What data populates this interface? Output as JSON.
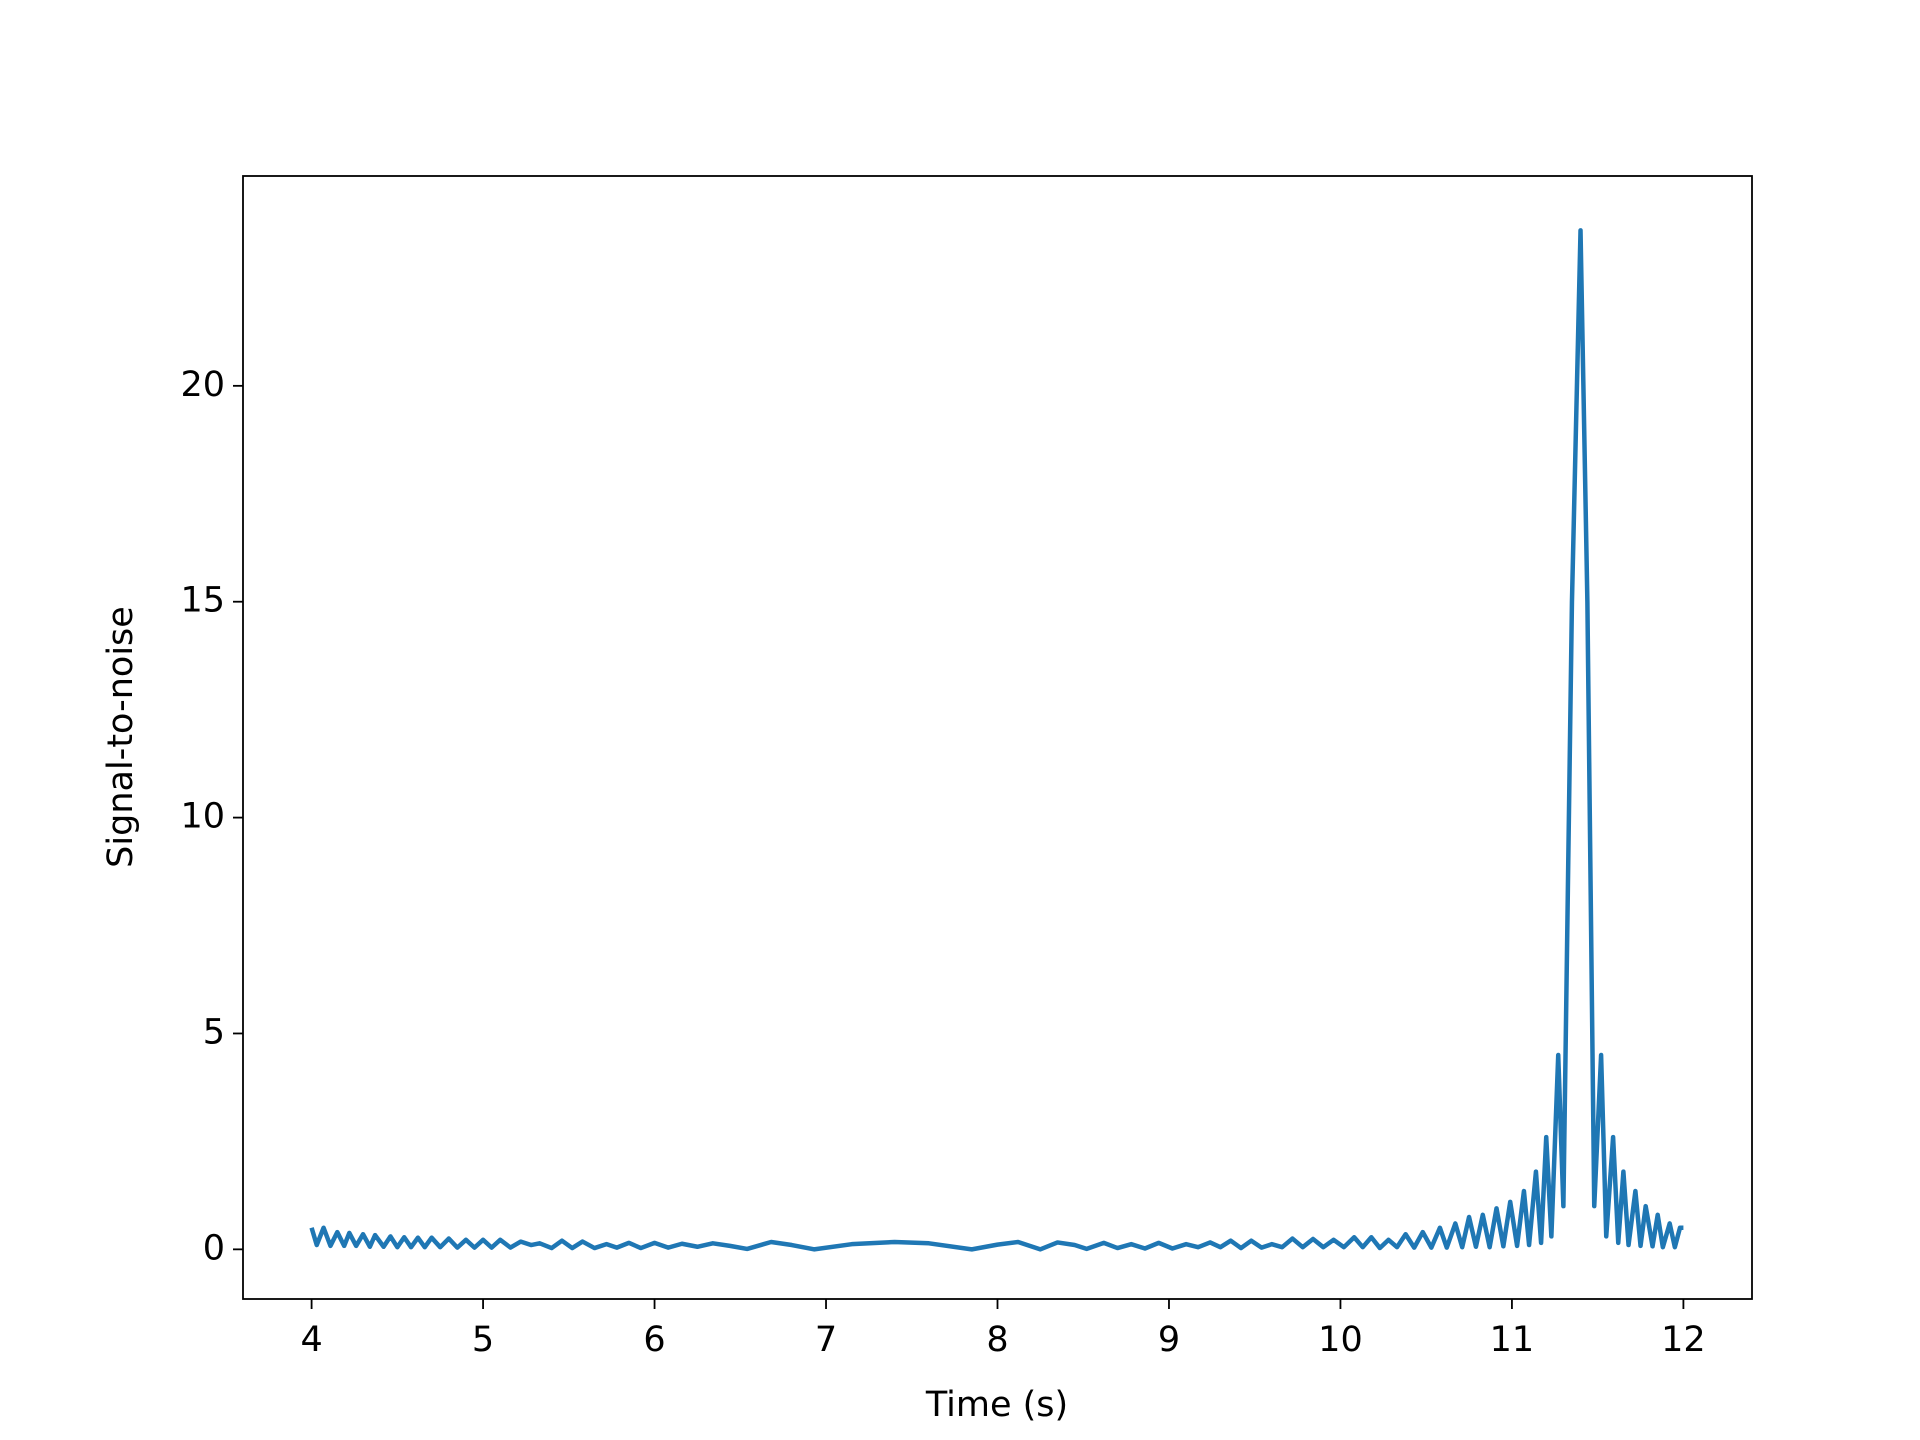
{
  "chart_data": {
    "type": "line",
    "xlabel": "Time (s)",
    "ylabel": "Signal-to-noise",
    "xlim": [
      3.6,
      12.4
    ],
    "xticks": [
      4,
      5,
      6,
      7,
      8,
      9,
      10,
      11,
      12
    ],
    "ylim": [
      -1.15,
      24.86
    ],
    "yticks": [
      0,
      5,
      10,
      15,
      20
    ],
    "grid": false,
    "x": [
      4.0,
      4.03,
      4.07,
      4.11,
      4.15,
      4.19,
      4.22,
      4.26,
      4.3,
      4.34,
      4.37,
      4.42,
      4.46,
      4.5,
      4.54,
      4.58,
      4.62,
      4.66,
      4.7,
      4.75,
      4.8,
      4.85,
      4.9,
      4.95,
      5.0,
      5.05,
      5.1,
      5.16,
      5.22,
      5.28,
      5.33,
      5.4,
      5.46,
      5.52,
      5.58,
      5.65,
      5.72,
      5.78,
      5.85,
      5.92,
      6.0,
      6.08,
      6.16,
      6.25,
      6.34,
      6.44,
      6.54,
      6.68,
      6.8,
      6.93,
      7.15,
      7.4,
      7.6,
      7.85,
      8.0,
      8.12,
      8.25,
      8.35,
      8.45,
      8.52,
      8.62,
      8.7,
      8.78,
      8.86,
      8.94,
      9.02,
      9.1,
      9.17,
      9.24,
      9.3,
      9.36,
      9.42,
      9.48,
      9.54,
      9.6,
      9.66,
      9.72,
      9.78,
      9.84,
      9.9,
      9.96,
      10.02,
      10.08,
      10.13,
      10.18,
      10.23,
      10.28,
      10.33,
      10.38,
      10.43,
      10.48,
      10.53,
      10.58,
      10.62,
      10.67,
      10.71,
      10.75,
      10.79,
      10.83,
      10.87,
      10.91,
      10.95,
      10.99,
      11.03,
      11.07,
      11.1,
      11.14,
      11.17,
      11.2,
      11.23,
      11.27,
      11.3,
      11.35,
      11.4,
      11.44,
      11.48,
      11.52,
      11.55,
      11.59,
      11.62,
      11.65,
      11.68,
      11.72,
      11.75,
      11.78,
      11.82,
      11.85,
      11.88,
      11.92,
      11.95,
      11.98,
      12.0
    ],
    "series": [
      {
        "color": "#1f77b4",
        "values": [
          0.5,
          0.1,
          0.5,
          0.08,
          0.4,
          0.08,
          0.38,
          0.08,
          0.35,
          0.06,
          0.33,
          0.06,
          0.3,
          0.05,
          0.28,
          0.05,
          0.27,
          0.05,
          0.27,
          0.05,
          0.25,
          0.04,
          0.22,
          0.04,
          0.22,
          0.04,
          0.22,
          0.04,
          0.18,
          0.1,
          0.14,
          0.03,
          0.2,
          0.03,
          0.18,
          0.03,
          0.12,
          0.04,
          0.15,
          0.03,
          0.15,
          0.04,
          0.13,
          0.06,
          0.14,
          0.08,
          0.01,
          0.17,
          0.1,
          0.0,
          0.12,
          0.17,
          0.14,
          0.0,
          0.11,
          0.17,
          0.0,
          0.16,
          0.1,
          0.01,
          0.15,
          0.03,
          0.12,
          0.02,
          0.15,
          0.02,
          0.12,
          0.05,
          0.16,
          0.05,
          0.2,
          0.03,
          0.2,
          0.04,
          0.12,
          0.05,
          0.25,
          0.05,
          0.24,
          0.05,
          0.22,
          0.05,
          0.28,
          0.05,
          0.28,
          0.03,
          0.22,
          0.05,
          0.35,
          0.04,
          0.4,
          0.04,
          0.5,
          0.04,
          0.6,
          0.05,
          0.75,
          0.06,
          0.8,
          0.05,
          0.95,
          0.07,
          1.1,
          0.08,
          1.35,
          0.1,
          1.8,
          0.15,
          2.6,
          0.3,
          4.5,
          1.0,
          15,
          23.6,
          15,
          1.0,
          4.5,
          0.3,
          2.6,
          0.15,
          1.8,
          0.1,
          1.35,
          0.08,
          1.0,
          0.07,
          0.8,
          0.05,
          0.6,
          0.05,
          0.5,
          0.5
        ]
      }
    ]
  }
}
